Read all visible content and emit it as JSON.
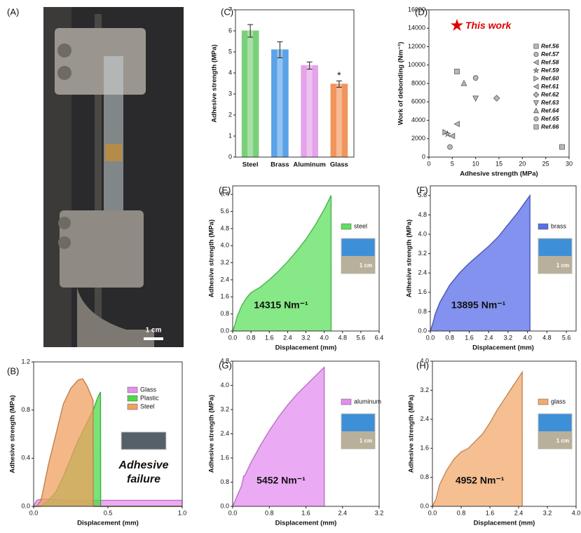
{
  "photo": {
    "label": "(A)",
    "scale_bar": "1 cm"
  },
  "chart_data": [
    {
      "type": "area",
      "label": "(B)",
      "xlabel": "Displacement (mm)",
      "ylabel": "Adhesive strength (MPa)",
      "xlim": [
        0,
        1.0
      ],
      "xticks": [
        {
          "value": 0,
          "label": "0.0"
        },
        0.5,
        {
          "value": 1,
          "label": "1.0"
        }
      ],
      "ylim": [
        0,
        1.2
      ],
      "yticks": [
        {
          "value": 0,
          "label": "0.0"
        },
        0.4,
        0.8,
        1.2
      ],
      "x": [
        0,
        0.02,
        0.05,
        0.1,
        0.15,
        0.2,
        0.25,
        0.3,
        0.33,
        0.36,
        0.4,
        0.401,
        0.43,
        0.45,
        0.451,
        0.6,
        0.8,
        1.0
      ],
      "series": [
        {
          "name": "Glass",
          "color": "#e58ef0",
          "values": [
            0,
            0.05,
            0.06,
            0.06,
            0.06,
            0.05,
            0.05,
            0.05,
            0.05,
            0.05,
            0.05,
            0.05,
            0.05,
            0.05,
            0.05,
            0.05,
            0.05,
            0.05
          ]
        },
        {
          "name": "Plastic",
          "color": "#4cd94c",
          "values": [
            0,
            0,
            0,
            0.05,
            0.12,
            0.25,
            0.4,
            0.55,
            0.62,
            0.7,
            0.8,
            0.8,
            0.9,
            0.95,
            0,
            0,
            0,
            0
          ]
        },
        {
          "name": "Steel",
          "color": "#f0a060",
          "values": [
            0,
            0,
            0.05,
            0.35,
            0.6,
            0.85,
            0.98,
            1.05,
            1.06,
            1.0,
            0.88,
            0,
            0,
            0,
            0,
            0,
            0,
            0
          ]
        }
      ],
      "annotation": [
        "Adhesive",
        "failure"
      ]
    },
    {
      "type": "bar",
      "label": "(C)",
      "ylabel": "Adhesive strength (MPa)",
      "categories": [
        "Steel",
        "Brass",
        "Aluminum",
        "Glass"
      ],
      "values": [
        6.0,
        5.1,
        4.35,
        3.47
      ],
      "errors": [
        0.3,
        0.38,
        0.17,
        0.15
      ],
      "colors": [
        "#6ccc6c",
        "#4a9ae6",
        "#e29ae8",
        "#f08a4a"
      ],
      "ylim": [
        0,
        7
      ],
      "yticks": [
        0,
        1,
        2,
        3,
        4,
        5,
        6,
        7
      ],
      "star_label": "*",
      "star_on": "Glass"
    },
    {
      "type": "scatter",
      "label": "(D)",
      "xlabel": "Adhesive strength (MPa)",
      "ylabel": "Work of debonding (Nm⁻¹)",
      "xlim": [
        0,
        30
      ],
      "xticks": [
        0,
        5,
        10,
        15,
        20,
        25,
        30
      ],
      "ylim": [
        0,
        16000
      ],
      "yticks": [
        0,
        2000,
        4000,
        6000,
        8000,
        10000,
        12000,
        14000,
        16000
      ],
      "series": [
        {
          "name": "This work",
          "color": "#e00000",
          "marker": "star",
          "x": [
            6
          ],
          "values": [
            14300
          ]
        },
        {
          "name": "Ref.56",
          "color": "#888888",
          "marker": "square",
          "x": [
            28.5
          ],
          "values": [
            1100
          ]
        },
        {
          "name": "Ref.57",
          "color": "#888888",
          "marker": "circle",
          "x": [
            4.5
          ],
          "values": [
            1100
          ]
        },
        {
          "name": "Ref.58",
          "color": "#888888",
          "marker": "tri-left",
          "x": [
            5
          ],
          "values": [
            2300
          ]
        },
        {
          "name": "Ref.59",
          "color": "#888888",
          "marker": "star",
          "x": [
            4
          ],
          "values": [
            2500
          ]
        },
        {
          "name": "Ref.60",
          "color": "#888888",
          "marker": "tri-right",
          "x": [
            3.5
          ],
          "values": [
            2700
          ]
        },
        {
          "name": "Ref.61",
          "color": "#888888",
          "marker": "tri-left",
          "x": [
            6
          ],
          "values": [
            3600
          ]
        },
        {
          "name": "Ref.62",
          "color": "#888888",
          "marker": "diamond",
          "x": [
            14.5
          ],
          "values": [
            6400
          ]
        },
        {
          "name": "Ref.63",
          "color": "#888888",
          "marker": "tri-down",
          "x": [
            10
          ],
          "values": [
            6400
          ]
        },
        {
          "name": "Ref.64",
          "color": "#888888",
          "marker": "tri-up",
          "x": [
            7.5
          ],
          "values": [
            8000
          ]
        },
        {
          "name": "Ref.65",
          "color": "#888888",
          "marker": "circle",
          "x": [
            10
          ],
          "values": [
            8600
          ]
        },
        {
          "name": "Ref.66",
          "color": "#888888",
          "marker": "square",
          "x": [
            6
          ],
          "values": [
            9300
          ]
        }
      ]
    },
    {
      "type": "area",
      "label": "(E)",
      "xlabel": "Displacement (mm)",
      "ylabel": "Adhesive strength (MPa)",
      "xlim": [
        0,
        6.4
      ],
      "xticks": [
        {
          "value": 0,
          "label": "0.0"
        },
        0.8,
        1.6,
        2.4,
        3.2,
        {
          "value": 4,
          "label": "4.0"
        },
        4.8,
        5.6,
        6.4
      ],
      "ylim": [
        0,
        6.8
      ],
      "yticks": [
        {
          "value": 0,
          "label": "0.0"
        },
        0.8,
        1.6,
        2.4,
        3.2,
        {
          "value": 4,
          "label": "4.0"
        },
        4.8,
        5.6,
        6.4
      ],
      "x": [
        0,
        0.1,
        0.2,
        0.4,
        0.6,
        0.8,
        1.2,
        1.6,
        2.0,
        2.4,
        2.8,
        3.2,
        3.6,
        4.0,
        4.3,
        4.301
      ],
      "series": [
        {
          "name": "steel",
          "color": "#5ee05e",
          "values": [
            0,
            0.3,
            0.7,
            1.2,
            1.55,
            1.8,
            2.05,
            2.4,
            2.8,
            3.25,
            3.75,
            4.3,
            4.95,
            5.7,
            6.35,
            0
          ]
        }
      ],
      "annotation": [
        "14315 Nm⁻¹"
      ],
      "inset_scale": "1 cm"
    },
    {
      "type": "area",
      "label": "(F)",
      "xlabel": "Displacement (mm)",
      "ylabel": "Adhesive strength (MPa)",
      "xlim": [
        0,
        6.0
      ],
      "xticks": [
        {
          "value": 0,
          "label": "0.0"
        },
        0.8,
        1.6,
        2.4,
        3.2,
        {
          "value": 4,
          "label": "4.0"
        },
        4.8,
        5.6
      ],
      "ylim": [
        0,
        6.0
      ],
      "yticks": [
        {
          "value": 0,
          "label": "0.0"
        },
        0.8,
        1.6,
        2.4,
        3.2,
        {
          "value": 4,
          "label": "4.0"
        },
        4.8,
        5.6
      ],
      "x": [
        0,
        0.1,
        0.2,
        0.4,
        0.8,
        1.2,
        1.6,
        2.0,
        2.4,
        2.8,
        3.2,
        3.6,
        4.1,
        4.101
      ],
      "series": [
        {
          "name": "brass",
          "color": "#5a6ee8",
          "values": [
            0,
            0.3,
            0.7,
            1.2,
            1.9,
            2.4,
            2.8,
            3.15,
            3.5,
            3.9,
            4.4,
            4.9,
            5.6,
            0
          ]
        }
      ],
      "annotation": [
        "13895 Nm⁻¹"
      ],
      "inset_scale": "1 cm"
    },
    {
      "type": "area",
      "label": "(G)",
      "xlabel": "Displacement (mm)",
      "ylabel": "Adhesive strength (MPa)",
      "xlim": [
        0,
        3.2
      ],
      "xticks": [
        {
          "value": 0,
          "label": "0.0"
        },
        0.8,
        1.6,
        2.4,
        3.2
      ],
      "ylim": [
        0,
        4.8
      ],
      "yticks": [
        {
          "value": 0,
          "label": "0.0"
        },
        0.8,
        1.6,
        2.4,
        3.2,
        {
          "value": 4,
          "label": "4.0"
        },
        4.8
      ],
      "x": [
        0,
        0.1,
        0.2,
        0.24,
        0.26,
        0.4,
        0.6,
        0.8,
        1.0,
        1.2,
        1.4,
        1.6,
        1.8,
        2.0,
        2.001
      ],
      "series": [
        {
          "name": "aluminum",
          "color": "#e48ef0",
          "values": [
            0,
            0.35,
            0.7,
            1.0,
            1.0,
            1.45,
            2.0,
            2.5,
            2.95,
            3.35,
            3.7,
            4.0,
            4.3,
            4.6,
            0
          ]
        }
      ],
      "annotation": [
        "5452 Nm⁻¹"
      ],
      "inset_scale": "1 cm"
    },
    {
      "type": "area",
      "label": "(H)",
      "xlabel": "Displacement (mm)",
      "ylabel": "Adhesive strength (MPa)",
      "xlim": [
        0,
        4.0
      ],
      "xticks": [
        {
          "value": 0,
          "label": "0.0"
        },
        0.8,
        1.6,
        2.4,
        3.2,
        {
          "value": 4,
          "label": "4.0"
        }
      ],
      "ylim": [
        0,
        4.0
      ],
      "yticks": [
        {
          "value": 0,
          "label": "0.0"
        },
        0.8,
        1.6,
        2.4,
        3.2,
        {
          "value": 4,
          "label": "4.0"
        }
      ],
      "x": [
        0,
        0.05,
        0.1,
        0.2,
        0.4,
        0.6,
        0.8,
        1.0,
        1.2,
        1.4,
        1.6,
        1.8,
        2.0,
        2.2,
        2.5,
        2.501
      ],
      "series": [
        {
          "name": "glass",
          "color": "#f2aa6e",
          "values": [
            0,
            0.1,
            0.2,
            0.6,
            1.0,
            1.3,
            1.5,
            1.6,
            1.8,
            2.0,
            2.3,
            2.65,
            2.95,
            3.25,
            3.7,
            0
          ]
        }
      ],
      "annotation": [
        "4952 Nm⁻¹"
      ],
      "inset_scale": "1 cm"
    }
  ]
}
